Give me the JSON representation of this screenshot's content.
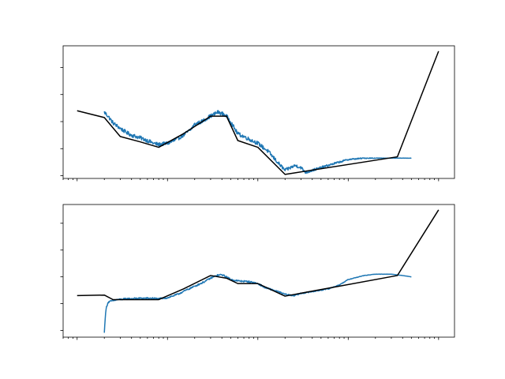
{
  "chart_data": [
    {
      "type": "line",
      "xscale": "log",
      "xlim": [
        0.7,
        15000
      ],
      "ylim": [
        -0.1,
        4.8
      ],
      "ytick_values": [
        0,
        1,
        2,
        3,
        4
      ],
      "xticklabels_visible": false,
      "yticklabels_visible": false,
      "grid": false,
      "legend": "none",
      "series": [
        {
          "color": "#1f77b4",
          "style": "noisy-measured",
          "x": [
            2,
            2.2,
            2.5,
            3,
            3.5,
            4,
            5,
            6,
            7,
            8,
            10,
            12,
            15,
            18,
            20,
            24,
            28,
            32,
            36,
            40,
            45,
            50,
            55,
            60,
            70,
            80,
            100,
            130,
            170,
            200,
            230,
            260,
            300,
            340,
            400,
            500,
            700,
            1000,
            1500,
            2500,
            5000
          ],
          "y": [
            2.35,
            2.2,
            1.95,
            1.75,
            1.6,
            1.5,
            1.4,
            1.3,
            1.2,
            1.15,
            1.2,
            1.3,
            1.5,
            1.7,
            1.9,
            2.0,
            2.15,
            2.25,
            2.35,
            2.3,
            2.2,
            2.0,
            1.75,
            1.55,
            1.45,
            1.35,
            1.2,
            0.9,
            0.45,
            0.2,
            0.3,
            0.38,
            0.3,
            0.12,
            0.2,
            0.3,
            0.45,
            0.6,
            0.65,
            0.65,
            0.65
          ],
          "noise": 0.07
        },
        {
          "color": "#000000",
          "x": [
            1,
            2,
            3,
            5,
            8,
            15,
            30,
            45,
            60,
            100,
            200,
            3500,
            10000
          ],
          "y": [
            2.4,
            2.15,
            1.45,
            1.25,
            1.05,
            1.55,
            2.2,
            2.2,
            1.3,
            1.05,
            0.05,
            0.7,
            4.6
          ]
        }
      ]
    },
    {
      "type": "line",
      "xscale": "log",
      "xlim": [
        0.7,
        15000
      ],
      "ylim": [
        -0.25,
        4.7
      ],
      "ytick_values": [
        0,
        1,
        2,
        3,
        4
      ],
      "xticklabels_visible": false,
      "yticklabels_visible": false,
      "grid": false,
      "legend": "none",
      "series": [
        {
          "color": "#1f77b4",
          "style": "noisy-measured",
          "x": [
            2,
            2.02,
            2.05,
            2.1,
            2.2,
            2.4,
            2.8,
            3.5,
            5,
            7,
            8,
            10,
            13,
            16,
            20,
            25,
            30,
            35,
            40,
            45,
            50,
            60,
            80,
            100,
            120,
            150,
            200,
            250,
            300,
            400,
            600,
            800,
            1000,
            1500,
            2000,
            3000,
            4000,
            5000
          ],
          "y": [
            -0.1,
            0.2,
            0.5,
            0.85,
            1.05,
            1.1,
            1.15,
            1.18,
            1.2,
            1.2,
            1.18,
            1.22,
            1.35,
            1.5,
            1.65,
            1.8,
            1.95,
            2.05,
            2.08,
            2.0,
            1.9,
            1.85,
            1.82,
            1.75,
            1.6,
            1.5,
            1.35,
            1.3,
            1.38,
            1.45,
            1.55,
            1.7,
            1.9,
            2.05,
            2.1,
            2.1,
            2.05,
            2.0
          ],
          "noise": 0.03
        },
        {
          "color": "#000000",
          "x": [
            1,
            2,
            2.5,
            8,
            15,
            30,
            45,
            60,
            100,
            200,
            3500,
            10000
          ],
          "y": [
            1.3,
            1.32,
            1.15,
            1.15,
            1.55,
            2.05,
            1.95,
            1.75,
            1.75,
            1.28,
            2.05,
            4.5
          ]
        }
      ]
    }
  ]
}
